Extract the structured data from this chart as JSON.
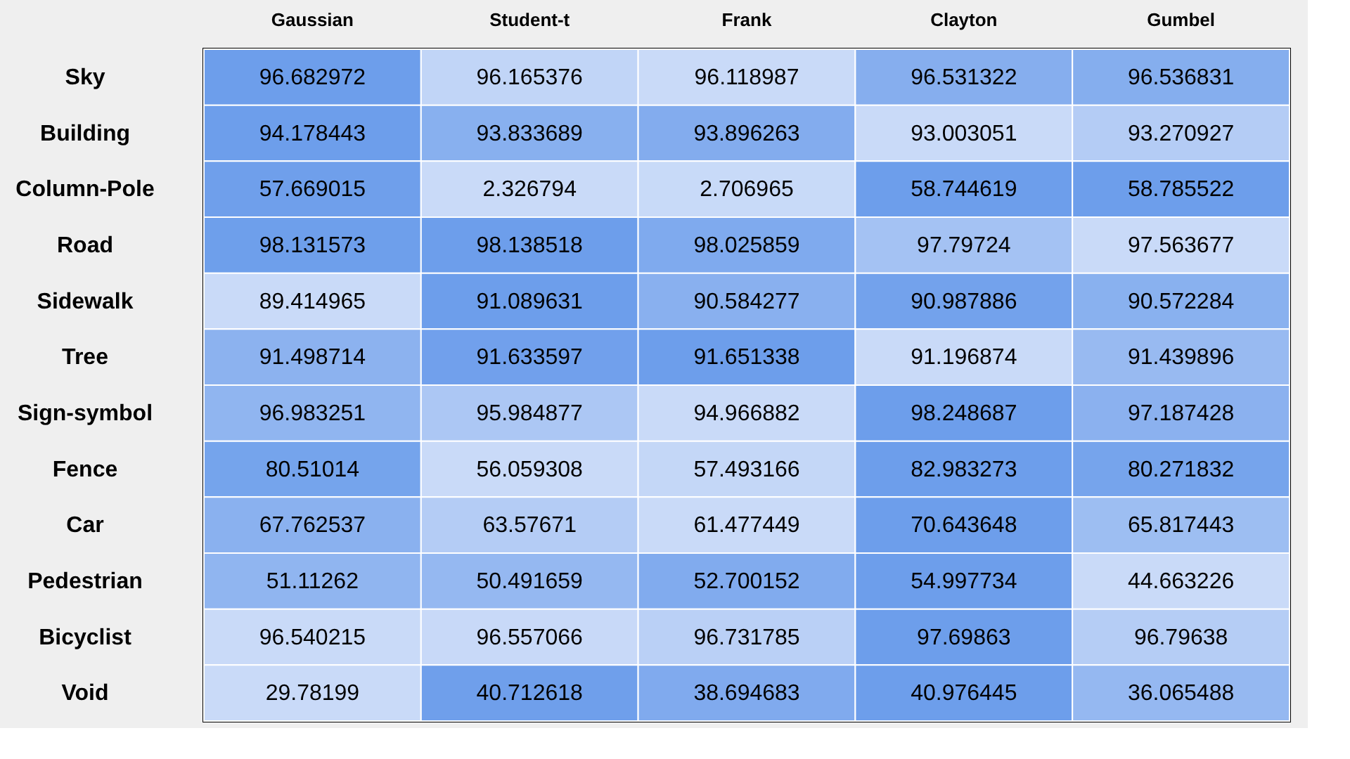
{
  "chart_data": {
    "type": "heatmap",
    "categories": [
      "Gaussian",
      "Student-t",
      "Frank",
      "Clayton",
      "Gumbel"
    ],
    "y_categories": [
      "Sky",
      "Building",
      "Column-Pole",
      "Road",
      "Sidewalk",
      "Tree",
      "Sign-symbol",
      "Fence",
      "Car",
      "Pedestrian",
      "Bicyclist",
      "Void"
    ],
    "cells": [
      [
        96.682972,
        96.165376,
        96.118987,
        96.531322,
        96.536831
      ],
      [
        94.178443,
        93.833689,
        93.896263,
        93.003051,
        93.270927
      ],
      [
        57.669015,
        2.326794,
        2.706965,
        58.744619,
        58.785522
      ],
      [
        98.131573,
        98.138518,
        98.025859,
        97.79724,
        97.563677
      ],
      [
        89.414965,
        91.089631,
        90.584277,
        90.987886,
        90.572284
      ],
      [
        91.498714,
        91.633597,
        91.651338,
        91.196874,
        91.439896
      ],
      [
        96.983251,
        95.984877,
        94.966882,
        98.248687,
        97.187428
      ],
      [
        80.51014,
        56.059308,
        57.493166,
        82.983273,
        80.271832
      ],
      [
        67.762537,
        63.57671,
        61.477449,
        70.643648,
        65.817443
      ],
      [
        51.11262,
        50.491659,
        52.700152,
        54.997734,
        44.663226
      ],
      [
        96.540215,
        96.557066,
        96.731785,
        97.69863,
        96.79638
      ],
      [
        29.78199,
        40.712618,
        38.694683,
        40.976445,
        36.065488
      ]
    ],
    "data_labels": true
  }
}
